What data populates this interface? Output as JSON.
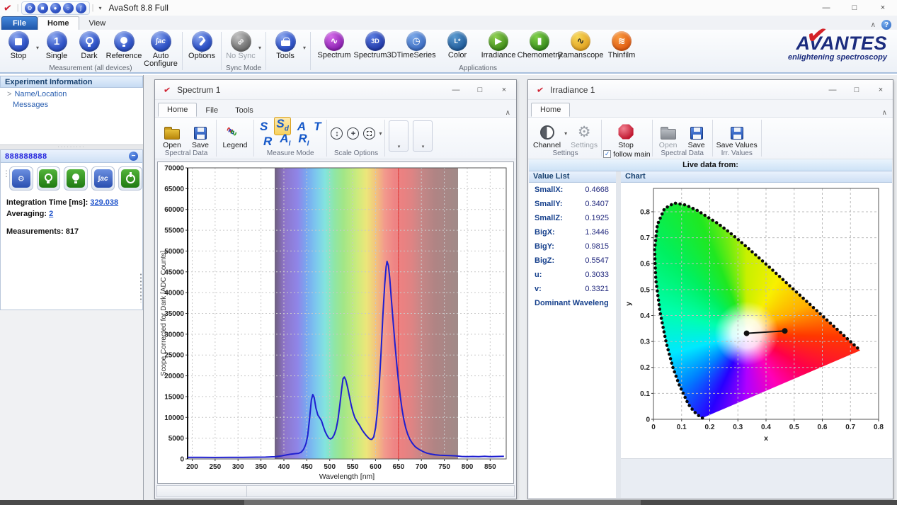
{
  "app": {
    "title": "AvaSoft 8.8 Full",
    "logo_check_glyph": "✔",
    "window_buttons": {
      "minimize": "—",
      "maximize": "□",
      "close": "×"
    },
    "help_glyph": "?",
    "collapse_glyph": "∧",
    "quick_access_icons": [
      {
        "name": "options-icon",
        "glyph": "⚙"
      },
      {
        "name": "stop-icon",
        "glyph": "■"
      },
      {
        "name": "dark-icon",
        "glyph": "●"
      },
      {
        "name": "reference-icon",
        "glyph": "○"
      },
      {
        "name": "auto-configure-icon",
        "glyph": "∫"
      }
    ]
  },
  "ribbon": {
    "tabs": [
      {
        "label": "File"
      },
      {
        "label": "Home"
      },
      {
        "label": "View"
      }
    ],
    "active_tab": "Home",
    "measurement_group": {
      "label": "Measurement (all devices)",
      "stop": "Stop",
      "single": "Single",
      "dark": "Dark",
      "reference": "Reference",
      "auto_configure": "Auto Configure"
    },
    "options_label": "Options",
    "sync_group": {
      "label": "Sync Mode",
      "no_sync": "No Sync"
    },
    "tools_label": "Tools",
    "applications_group": {
      "label": "Applications",
      "buttons": [
        {
          "label": "Spectrum",
          "glyph": "∿",
          "c1": "#d46ae8",
          "c2": "#8a1fb0",
          "fg": "#fff"
        },
        {
          "label": "Spectrum3D",
          "glyph": "3D",
          "c1": "#5a7ce0",
          "c2": "#2038a8",
          "fg": "#fff"
        },
        {
          "label": "TimeSeries",
          "glyph": "◷",
          "c1": "#7aa8e8",
          "c2": "#3a6ac0",
          "fg": "#fff"
        },
        {
          "label": "Color",
          "glyph": "L*",
          "c1": "#5a9ad0",
          "c2": "#1f5a98",
          "fg": "#fff"
        },
        {
          "label": "Irradiance",
          "glyph": "▶",
          "c1": "#8ed050",
          "c2": "#3f8a18",
          "fg": "#fff"
        },
        {
          "label": "Chemometry",
          "glyph": "▮",
          "c1": "#7ed046",
          "c2": "#35881a",
          "fg": "#fff"
        },
        {
          "label": "Ramanscope",
          "glyph": "∿",
          "c1": "#f8d858",
          "c2": "#e0a020",
          "fg": "#222"
        },
        {
          "label": "Thinfilm",
          "glyph": "≋",
          "c1": "#f89a40",
          "c2": "#e05a10",
          "fg": "#fff"
        }
      ]
    },
    "logo": {
      "brand": "AVANTES",
      "tagline": "enlightening spectroscopy"
    }
  },
  "sidebar": {
    "experiment_header": "Experiment Information",
    "tree": [
      {
        "prefix": ">",
        "label": "Name/Location"
      },
      {
        "prefix": "",
        "label": "Messages"
      }
    ],
    "device_panel": {
      "serial": "888888888",
      "collapse_glyph": "−",
      "fields": [
        {
          "label": "Integration Time  [ms]:",
          "value": "329.038",
          "link": true
        },
        {
          "label": "Averaging:",
          "value": "2",
          "link": true
        },
        {
          "label": "Measurements:",
          "value": "817",
          "link": false
        }
      ]
    }
  },
  "spectrum_window": {
    "title": "Spectrum 1",
    "tabs": [
      "Home",
      "File",
      "Tools"
    ],
    "active_tab": "Home",
    "toolbar": {
      "open": "Open",
      "save": "Save",
      "spectral_data_label": "Spectral Data",
      "legend": "Legend",
      "measure_mode_label": "Measure Mode",
      "measure_modes_row1": [
        {
          "main": "S",
          "sub": "",
          "selected": false
        },
        {
          "main": "S",
          "sub": "d",
          "selected": true
        },
        {
          "main": "A",
          "sub": "",
          "selected": false
        },
        {
          "main": "T",
          "sub": "",
          "selected": false
        }
      ],
      "measure_modes_row2": [
        {
          "main": "R",
          "sub": "",
          "selected": false
        },
        {
          "main": "A",
          "sub": "I",
          "selected": false
        },
        {
          "main": "R",
          "sub": "I",
          "selected": false
        }
      ],
      "scale_options_label": "Scale Options"
    },
    "status": {
      "left": "",
      "right": ""
    }
  },
  "irradiance_window": {
    "title": "Irradiance 1",
    "tabs": [
      "Home"
    ],
    "toolbar": {
      "channel": "Channel",
      "settings": "Settings",
      "settings_group_label": "Settings",
      "stop": "Stop",
      "follow_main": "follow main",
      "follow_main_checked": true,
      "check_glyph": "✓",
      "open": "Open",
      "save": "Save",
      "spectral_data_label": "Spectral Data",
      "save_values": "Save Values",
      "irr_values_label": "Irr. Values"
    },
    "live_data_label": "Live data from:",
    "value_list": {
      "header": "Value List",
      "rows": [
        {
          "label": "SmallX:",
          "value": "0.4668"
        },
        {
          "label": "SmallY:",
          "value": "0.3407"
        },
        {
          "label": "SmallZ:",
          "value": "0.1925"
        },
        {
          "label": "BigX:",
          "value": "1.3446"
        },
        {
          "label": "BigY:",
          "value": "0.9815"
        },
        {
          "label": "BigZ:",
          "value": "0.5547"
        },
        {
          "label": "u:",
          "value": "0.3033"
        },
        {
          "label": "v:",
          "value": "0.3321"
        },
        {
          "label": "Dominant Waveleng",
          "value": ""
        }
      ]
    },
    "chart_header": "Chart"
  },
  "chart_data": [
    {
      "id": "spectrum",
      "type": "line",
      "xlabel": "Wavelength [nm]",
      "ylabel": "Scope Corrected for Dark [ADC Counts]",
      "xlim": [
        190,
        885
      ],
      "ylim": [
        0,
        70000
      ],
      "x_ticks": [
        200,
        250,
        300,
        350,
        400,
        450,
        500,
        550,
        600,
        650,
        700,
        750,
        800,
        850
      ],
      "y_ticks": [
        0,
        5000,
        10000,
        15000,
        20000,
        25000,
        30000,
        35000,
        40000,
        45000,
        50000,
        55000,
        60000,
        65000,
        70000
      ],
      "rainbow_band_nm": [
        380,
        780
      ],
      "cursor_line_x": 650,
      "line_color": "#1f1fd0",
      "cursor_color": "#e03030",
      "grid": true,
      "series": [
        {
          "name": "Scope",
          "points": [
            [
              190,
              400
            ],
            [
              220,
              400
            ],
            [
              250,
              350
            ],
            [
              280,
              400
            ],
            [
              310,
              380
            ],
            [
              340,
              420
            ],
            [
              360,
              450
            ],
            [
              380,
              520
            ],
            [
              395,
              750
            ],
            [
              405,
              950
            ],
            [
              415,
              1150
            ],
            [
              425,
              1280
            ],
            [
              432,
              1350
            ],
            [
              438,
              1650
            ],
            [
              443,
              2300
            ],
            [
              448,
              3600
            ],
            [
              452,
              5600
            ],
            [
              456,
              9600
            ],
            [
              460,
              14200
            ],
            [
              463,
              15500
            ],
            [
              466,
              14800
            ],
            [
              470,
              12200
            ],
            [
              474,
              10600
            ],
            [
              478,
              9900
            ],
            [
              482,
              9200
            ],
            [
              486,
              7800
            ],
            [
              490,
              6600
            ],
            [
              494,
              5700
            ],
            [
              498,
              5000
            ],
            [
              502,
              4800
            ],
            [
              506,
              5100
            ],
            [
              510,
              5900
            ],
            [
              514,
              7200
            ],
            [
              518,
              9500
            ],
            [
              522,
              13000
            ],
            [
              526,
              16800
            ],
            [
              529,
              19300
            ],
            [
              532,
              19700
            ],
            [
              535,
              19000
            ],
            [
              539,
              17200
            ],
            [
              543,
              15000
            ],
            [
              547,
              12800
            ],
            [
              551,
              11200
            ],
            [
              555,
              9900
            ],
            [
              560,
              8900
            ],
            [
              565,
              8100
            ],
            [
              570,
              7100
            ],
            [
              575,
              6300
            ],
            [
              580,
              5600
            ],
            [
              585,
              5000
            ],
            [
              588,
              4750
            ],
            [
              592,
              4700
            ],
            [
              596,
              5300
            ],
            [
              600,
              7500
            ],
            [
              604,
              11500
            ],
            [
              608,
              17500
            ],
            [
              612,
              25500
            ],
            [
              616,
              34500
            ],
            [
              620,
              42000
            ],
            [
              623,
              46200
            ],
            [
              625,
              47500
            ],
            [
              628,
              46500
            ],
            [
              631,
              43500
            ],
            [
              634,
              39000
            ],
            [
              638,
              33500
            ],
            [
              642,
              28000
            ],
            [
              646,
              23000
            ],
            [
              650,
              18800
            ],
            [
              654,
              15000
            ],
            [
              658,
              11800
            ],
            [
              662,
              9300
            ],
            [
              666,
              7400
            ],
            [
              670,
              6000
            ],
            [
              675,
              4700
            ],
            [
              680,
              3800
            ],
            [
              686,
              3000
            ],
            [
              692,
              2500
            ],
            [
              698,
              2100
            ],
            [
              705,
              1700
            ],
            [
              712,
              1400
            ],
            [
              720,
              1200
            ],
            [
              730,
              1000
            ],
            [
              740,
              900
            ],
            [
              750,
              850
            ],
            [
              762,
              800
            ],
            [
              775,
              750
            ],
            [
              788,
              600
            ],
            [
              800,
              550
            ],
            [
              812,
              600
            ],
            [
              825,
              550
            ],
            [
              838,
              650
            ],
            [
              850,
              550
            ],
            [
              865,
              600
            ],
            [
              880,
              650
            ]
          ]
        }
      ]
    },
    {
      "id": "cie_chromaticity",
      "type": "scatter",
      "xlabel": "x",
      "ylabel": "y",
      "xlim": [
        0,
        0.8
      ],
      "ylim": [
        0,
        0.89
      ],
      "x_ticks": [
        0,
        0.1,
        0.2,
        0.3,
        0.4,
        0.5,
        0.6,
        0.7,
        0.8
      ],
      "y_ticks": [
        0,
        0.1,
        0.2,
        0.3,
        0.4,
        0.5,
        0.6,
        0.7,
        0.8
      ],
      "grid": true,
      "white_point": [
        0.331,
        0.3315
      ],
      "measured_point": [
        0.4668,
        0.3407
      ],
      "measure_line": [
        [
          0.331,
          0.3315
        ],
        [
          0.4668,
          0.3407
        ]
      ],
      "spectral_locus": [
        [
          0.1741,
          0.005
        ],
        [
          0.1726,
          0.0048
        ],
        [
          0.1689,
          0.0069
        ],
        [
          0.1644,
          0.0109
        ],
        [
          0.1566,
          0.0177
        ],
        [
          0.144,
          0.0297
        ],
        [
          0.1241,
          0.0578
        ],
        [
          0.0913,
          0.1327
        ],
        [
          0.0687,
          0.2007
        ],
        [
          0.0454,
          0.295
        ],
        [
          0.0235,
          0.4127
        ],
        [
          0.0082,
          0.5384
        ],
        [
          0.0039,
          0.6548
        ],
        [
          0.0139,
          0.7502
        ],
        [
          0.0389,
          0.812
        ],
        [
          0.0743,
          0.8338
        ],
        [
          0.1142,
          0.8262
        ],
        [
          0.1547,
          0.8059
        ],
        [
          0.1896,
          0.7816
        ],
        [
          0.2296,
          0.7543
        ],
        [
          0.2658,
          0.7243
        ],
        [
          0.3016,
          0.6923
        ],
        [
          0.3373,
          0.6589
        ],
        [
          0.3731,
          0.6245
        ],
        [
          0.4087,
          0.5896
        ],
        [
          0.4441,
          0.5547
        ],
        [
          0.4788,
          0.5202
        ],
        [
          0.5125,
          0.4866
        ],
        [
          0.5448,
          0.4544
        ],
        [
          0.5752,
          0.4242
        ],
        [
          0.6029,
          0.3965
        ],
        [
          0.627,
          0.3725
        ],
        [
          0.6482,
          0.3514
        ],
        [
          0.6658,
          0.334
        ],
        [
          0.6915,
          0.3083
        ],
        [
          0.7079,
          0.292
        ],
        [
          0.719,
          0.2809
        ],
        [
          0.726,
          0.274
        ],
        [
          0.7334,
          0.2666
        ],
        [
          0.7347,
          0.2653
        ]
      ]
    }
  ]
}
